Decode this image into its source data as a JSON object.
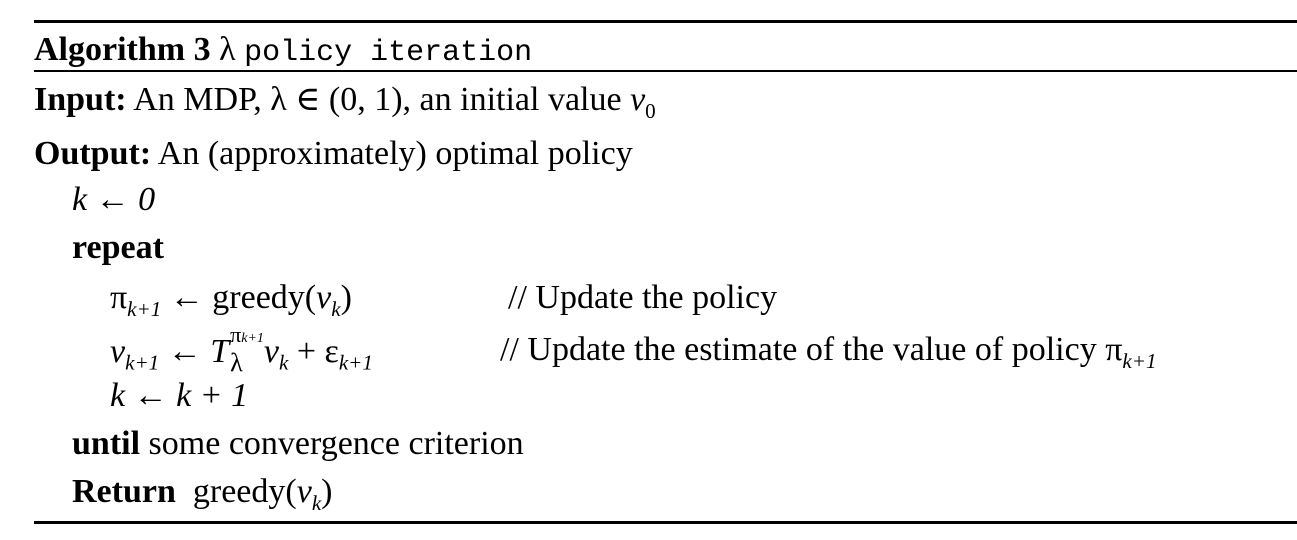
{
  "algorithm": {
    "header_label": "Algorithm 3",
    "title_symbol": "λ",
    "title_name": "policy iteration",
    "input_label": "Input:",
    "input_text_1": "An MDP, ",
    "input_math": "λ ∈ (0, 1)",
    "input_text_2": ", an initial value ",
    "input_v": "v",
    "input_v_sub": "0",
    "output_label": "Output:",
    "output_text": "An (approximately) optimal policy",
    "line_init": "k ← 0",
    "repeat_label": "repeat",
    "line_pi_lhs": "π",
    "line_pi_lhs_sub": "k+1",
    "line_pi_rhs": " ← greedy(",
    "line_pi_arg": "v",
    "line_pi_arg_sub": "k",
    "line_pi_close": ")",
    "comment_1": "// Update the policy",
    "line_v_lhs": "v",
    "line_v_lhs_sub": "k+1",
    "line_v_arrow": " ← ",
    "line_v_T": "T",
    "line_v_T_sup": "π",
    "line_v_T_sup_sub": "k+1",
    "line_v_T_sub": "λ",
    "line_v_v": "v",
    "line_v_v_sub": "k",
    "line_v_plus": " + ε",
    "line_v_eps_sub": "k+1",
    "comment_2": "// Update the estimate of the value of policy π",
    "comment_2_sub": "k+1",
    "line_incr": "k ← k + 1",
    "until_label": "until",
    "until_text": " some convergence criterion",
    "return_label": "Return",
    "return_text": "greedy(",
    "return_v": "v",
    "return_v_sub": "k",
    "return_close": ")"
  }
}
